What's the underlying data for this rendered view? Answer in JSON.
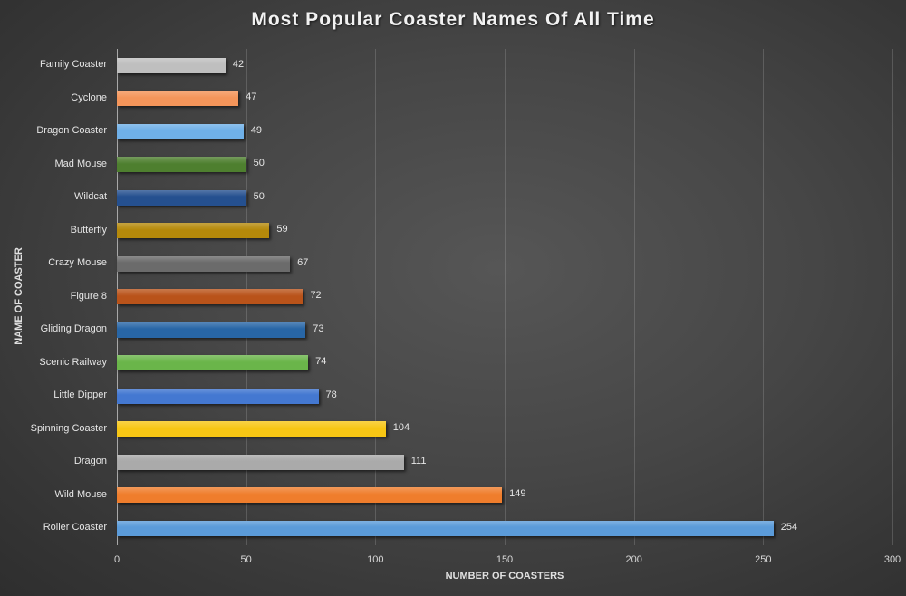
{
  "chart_data": {
    "type": "bar",
    "orientation": "horizontal",
    "title": "Most Popular Coaster Names Of All Time",
    "xlabel": "NUMBER OF COASTERS",
    "ylabel": "NAME OF COASTER",
    "xlim": [
      0,
      300
    ],
    "xticks": [
      "0",
      "50",
      "100",
      "150",
      "200",
      "250",
      "300"
    ],
    "grid": true,
    "legend": null,
    "categories": [
      "Family Coaster",
      "Cyclone",
      "Dragon Coaster",
      "Mad Mouse",
      "Wildcat",
      "Butterfly",
      "Crazy Mouse",
      "Figure 8",
      "Gliding Dragon",
      "Scenic Railway",
      "Little Dipper",
      "Spinning Coaster",
      "Dragon",
      "Wild Mouse",
      "Roller Coaster"
    ],
    "values": [
      42,
      47,
      49,
      50,
      50,
      59,
      67,
      72,
      73,
      74,
      78,
      104,
      111,
      149,
      254
    ],
    "colors": [
      "#bfbfbf",
      "#f4955a",
      "#6fb0e8",
      "#4e7f2f",
      "#25508f",
      "#b5890a",
      "#6b6b6b",
      "#b9531a",
      "#2866a6",
      "#6ab54a",
      "#4478d1",
      "#f7c614",
      "#aaaaaa",
      "#ef7d2c",
      "#5b9bd9"
    ],
    "value_labels": [
      "42",
      "47",
      "49",
      "50",
      "50",
      "59",
      "67",
      "72",
      "73",
      "74",
      "78",
      "104",
      "111",
      "149",
      "254"
    ]
  }
}
